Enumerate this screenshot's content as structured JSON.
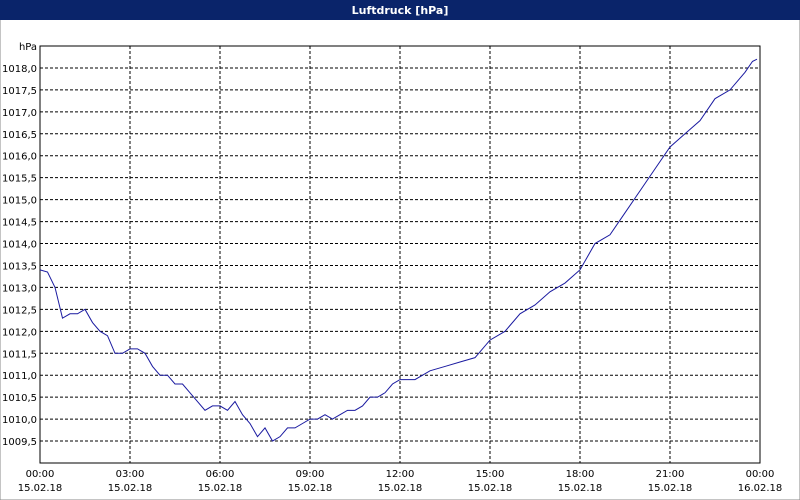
{
  "chart_data": {
    "type": "line",
    "title": "Luftdruck [hPa]",
    "x": [
      0,
      0.25,
      0.5,
      0.75,
      1,
      1.25,
      1.5,
      1.75,
      2,
      2.25,
      2.5,
      2.75,
      3,
      3.25,
      3.5,
      3.75,
      4,
      4.25,
      4.5,
      4.75,
      5,
      5.25,
      5.5,
      5.75,
      6,
      6.25,
      6.5,
      6.75,
      7,
      7.25,
      7.5,
      7.75,
      8,
      8.25,
      8.5,
      8.75,
      9,
      9.25,
      9.5,
      9.75,
      10,
      10.25,
      10.5,
      10.75,
      11,
      11.25,
      11.5,
      11.75,
      12,
      12.5,
      13,
      13.5,
      14,
      14.5,
      15,
      15.5,
      16,
      16.5,
      17,
      17.5,
      18,
      18.5,
      19,
      19.5,
      20,
      20.5,
      21,
      21.5,
      22,
      22.5,
      23,
      23.5,
      23.75,
      23.9
    ],
    "series": [
      {
        "name": "Luftdruck",
        "color": "#1a1aa0",
        "values": [
          1013.4,
          1013.35,
          1013.0,
          1012.3,
          1012.4,
          1012.4,
          1012.5,
          1012.2,
          1012.0,
          1011.9,
          1011.5,
          1011.5,
          1011.6,
          1011.6,
          1011.5,
          1011.2,
          1011.0,
          1011.0,
          1010.8,
          1010.8,
          1010.6,
          1010.4,
          1010.2,
          1010.3,
          1010.3,
          1010.2,
          1010.4,
          1010.1,
          1009.9,
          1009.6,
          1009.8,
          1009.5,
          1009.6,
          1009.8,
          1009.8,
          1009.9,
          1010.0,
          1010.0,
          1010.1,
          1010.0,
          1010.1,
          1010.2,
          1010.2,
          1010.3,
          1010.5,
          1010.5,
          1010.6,
          1010.8,
          1010.9,
          1010.9,
          1011.1,
          1011.2,
          1011.3,
          1011.4,
          1011.8,
          1012.0,
          1012.4,
          1012.6,
          1012.9,
          1013.1,
          1013.4,
          1014.0,
          1014.2,
          1014.7,
          1015.2,
          1015.7,
          1016.2,
          1016.5,
          1016.8,
          1017.3,
          1017.5,
          1017.9,
          1018.15,
          1018.2
        ]
      }
    ],
    "xlim": [
      0,
      24
    ],
    "xticks": [
      {
        "value": 0,
        "label": "00:00\n15.02.18"
      },
      {
        "value": 3,
        "label": "03:00\n15.02.18"
      },
      {
        "value": 6,
        "label": "06:00\n15.02.18"
      },
      {
        "value": 9,
        "label": "09:00\n15.02.18"
      },
      {
        "value": 12,
        "label": "12:00\n15.02.18"
      },
      {
        "value": 15,
        "label": "15:00\n15.02.18"
      },
      {
        "value": 18,
        "label": "18:00\n15.02.18"
      },
      {
        "value": 21,
        "label": "21:00\n15.02.18"
      },
      {
        "value": 24,
        "label": "00:00\n16.02.18"
      }
    ],
    "ylim": [
      1009,
      1018.5
    ],
    "yticks": [
      {
        "value": 1009.5,
        "label": "1009,5"
      },
      {
        "value": 1010,
        "label": "1010,0"
      },
      {
        "value": 1010.5,
        "label": "1010,5"
      },
      {
        "value": 1011,
        "label": "1011,0"
      },
      {
        "value": 1011.5,
        "label": "1011,5"
      },
      {
        "value": 1012,
        "label": "1012,0"
      },
      {
        "value": 1012.5,
        "label": "1012,5"
      },
      {
        "value": 1013,
        "label": "1013,0"
      },
      {
        "value": 1013.5,
        "label": "1013,5"
      },
      {
        "value": 1014,
        "label": "1014,0"
      },
      {
        "value": 1014.5,
        "label": "1014,5"
      },
      {
        "value": 1015,
        "label": "1015,0"
      },
      {
        "value": 1015.5,
        "label": "1015,5"
      },
      {
        "value": 1016,
        "label": "1016,0"
      },
      {
        "value": 1016.5,
        "label": "1016,5"
      },
      {
        "value": 1017,
        "label": "1017,0"
      },
      {
        "value": 1017.5,
        "label": "1017,5"
      },
      {
        "value": 1018,
        "label": "1018,0"
      },
      {
        "value": 1018.5,
        "label": "hPa"
      }
    ],
    "grid": true
  }
}
